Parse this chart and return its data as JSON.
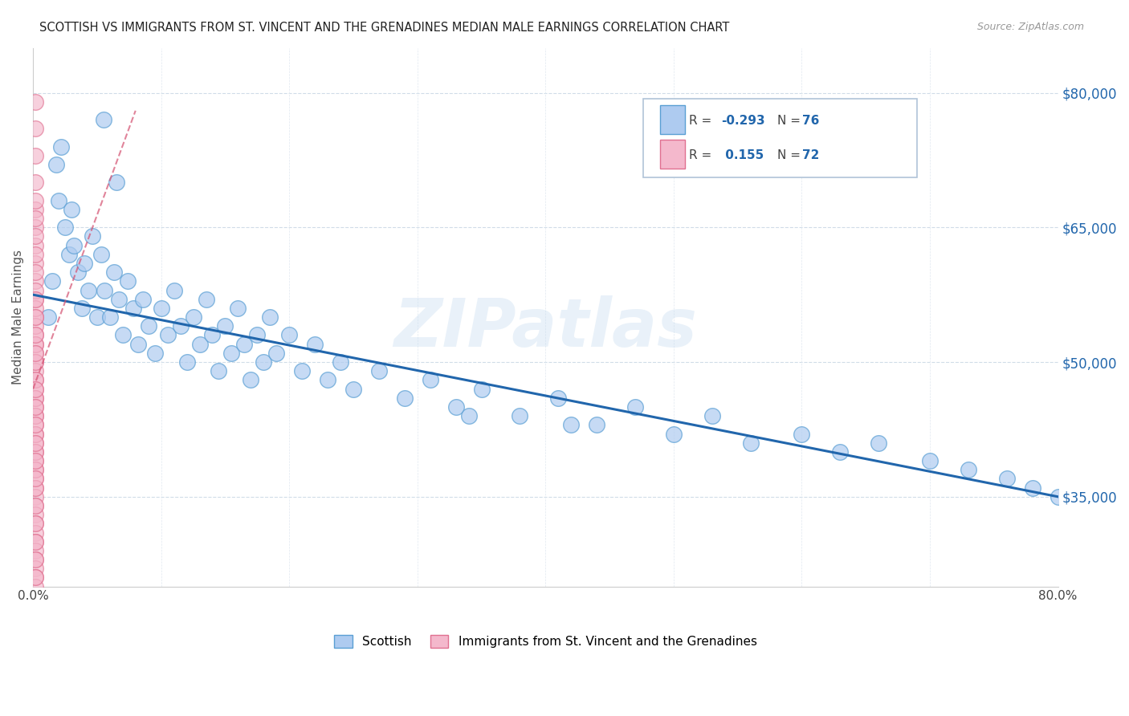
{
  "title": "SCOTTISH VS IMMIGRANTS FROM ST. VINCENT AND THE GRENADINES MEDIAN MALE EARNINGS CORRELATION CHART",
  "source": "Source: ZipAtlas.com",
  "ylabel": "Median Male Earnings",
  "x_min": 0.0,
  "x_max": 0.8,
  "y_min": 25000,
  "y_max": 85000,
  "y_ticks": [
    35000,
    50000,
    65000,
    80000
  ],
  "y_tick_labels": [
    "$35,000",
    "$50,000",
    "$65,000",
    "$80,000"
  ],
  "legend_labels": [
    "Scottish",
    "Immigrants from St. Vincent and the Grenadines"
  ],
  "R_scottish": -0.293,
  "N_scottish": 76,
  "R_immigrants": 0.155,
  "N_immigrants": 72,
  "scottish_color": "#aecbf0",
  "scottish_edge_color": "#5a9fd4",
  "scottish_line_color": "#2166ac",
  "immigrant_color": "#f4b8cc",
  "immigrant_edge_color": "#e07090",
  "immigrant_line_color": "#d45070",
  "blue_color": "#2166ac",
  "watermark": "ZIPatlas",
  "scottish_x": [
    0.012,
    0.015,
    0.018,
    0.02,
    0.022,
    0.025,
    0.028,
    0.03,
    0.032,
    0.035,
    0.038,
    0.04,
    0.043,
    0.046,
    0.05,
    0.053,
    0.056,
    0.06,
    0.063,
    0.067,
    0.07,
    0.074,
    0.078,
    0.082,
    0.086,
    0.09,
    0.095,
    0.1,
    0.105,
    0.11,
    0.115,
    0.12,
    0.125,
    0.13,
    0.135,
    0.14,
    0.145,
    0.15,
    0.155,
    0.16,
    0.165,
    0.17,
    0.175,
    0.18,
    0.185,
    0.19,
    0.2,
    0.21,
    0.22,
    0.23,
    0.24,
    0.25,
    0.27,
    0.29,
    0.31,
    0.33,
    0.35,
    0.38,
    0.41,
    0.44,
    0.47,
    0.5,
    0.53,
    0.56,
    0.6,
    0.63,
    0.66,
    0.7,
    0.73,
    0.76,
    0.78,
    0.8,
    0.055,
    0.065,
    0.34,
    0.42
  ],
  "scottish_y": [
    55000,
    59000,
    72000,
    68000,
    74000,
    65000,
    62000,
    67000,
    63000,
    60000,
    56000,
    61000,
    58000,
    64000,
    55000,
    62000,
    58000,
    55000,
    60000,
    57000,
    53000,
    59000,
    56000,
    52000,
    57000,
    54000,
    51000,
    56000,
    53000,
    58000,
    54000,
    50000,
    55000,
    52000,
    57000,
    53000,
    49000,
    54000,
    51000,
    56000,
    52000,
    48000,
    53000,
    50000,
    55000,
    51000,
    53000,
    49000,
    52000,
    48000,
    50000,
    47000,
    49000,
    46000,
    48000,
    45000,
    47000,
    44000,
    46000,
    43000,
    45000,
    42000,
    44000,
    41000,
    42000,
    40000,
    41000,
    39000,
    38000,
    37000,
    36000,
    35000,
    77000,
    70000,
    44000,
    43000
  ],
  "immigrant_x": [
    0.002,
    0.002,
    0.002,
    0.002,
    0.002,
    0.002,
    0.002,
    0.002,
    0.002,
    0.002,
    0.002,
    0.002,
    0.002,
    0.002,
    0.002,
    0.002,
    0.002,
    0.002,
    0.002,
    0.002,
    0.002,
    0.002,
    0.002,
    0.002,
    0.002,
    0.002,
    0.002,
    0.002,
    0.002,
    0.002,
    0.002,
    0.002,
    0.002,
    0.002,
    0.002,
    0.002,
    0.002,
    0.002,
    0.002,
    0.002,
    0.002,
    0.002,
    0.002,
    0.002,
    0.002,
    0.002,
    0.002,
    0.002,
    0.002,
    0.002,
    0.002,
    0.002,
    0.002,
    0.002,
    0.002,
    0.002,
    0.002,
    0.002,
    0.002,
    0.002,
    0.002,
    0.002,
    0.002,
    0.002,
    0.002,
    0.002,
    0.002,
    0.002,
    0.002,
    0.002,
    0.002,
    0.002
  ],
  "immigrant_y": [
    79000,
    76000,
    73000,
    70000,
    67000,
    65000,
    63000,
    61000,
    59000,
    57000,
    55000,
    53000,
    52000,
    51000,
    50000,
    49000,
    48000,
    47000,
    46000,
    45000,
    44000,
    43000,
    42000,
    41000,
    40000,
    39000,
    38000,
    37000,
    36000,
    35000,
    34000,
    33000,
    32000,
    31000,
    30000,
    29000,
    28000,
    27000,
    26000,
    25000,
    58000,
    56000,
    54000,
    52000,
    50000,
    48000,
    46000,
    44000,
    42000,
    40000,
    38000,
    36000,
    34000,
    32000,
    30000,
    28000,
    26000,
    62000,
    60000,
    64000,
    55000,
    53000,
    51000,
    57000,
    43000,
    41000,
    39000,
    37000,
    47000,
    45000,
    68000,
    66000
  ],
  "blue_trend_x0": 0.0,
  "blue_trend_y0": 57500,
  "blue_trend_x1": 0.8,
  "blue_trend_y1": 35000,
  "pink_trend_x0": 0.0,
  "pink_trend_y0": 47000,
  "pink_trend_x1": 0.08,
  "pink_trend_y1": 78000
}
